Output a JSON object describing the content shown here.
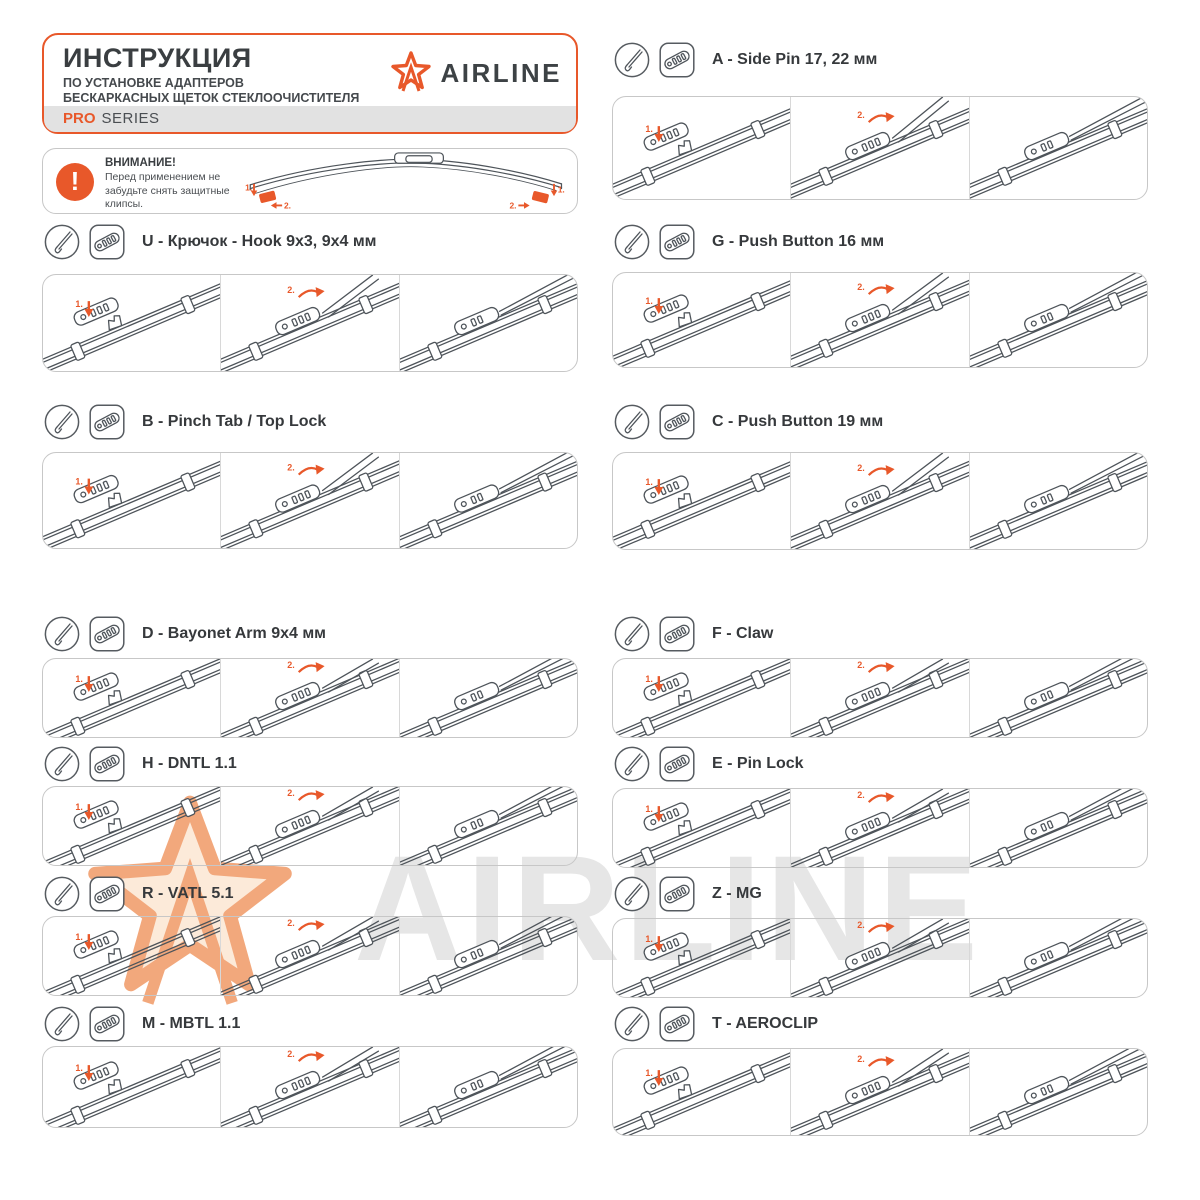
{
  "header": {
    "title": "ИНСТРУКЦИЯ",
    "subtitle_line1": "ПО УСТАНОВКЕ АДАПТЕРОВ",
    "subtitle_line2": "БЕСКАРКАСНЫХ ЩЕТОК СТЕКЛООЧИСТИТЕЛЯ",
    "series_highlight": "PRO",
    "series_rest": "SERIES",
    "brand": "AIRLINE"
  },
  "warning": {
    "title": "ВНИМАНИЕ!",
    "text": "Перед применением не забудьте снять защитные клипсы.",
    "icon_glyph": "!",
    "clip_labels": [
      "1.",
      "2."
    ]
  },
  "watermark": {
    "text": "AIRLINE"
  },
  "panels": {
    "step_labels": [
      "1.",
      "2."
    ]
  },
  "icons": {
    "arm_icon": "wiper-arm-end",
    "adapter_icon": "adapter-clip",
    "warning_icon": "exclamation-circle",
    "brand_icon": "airline-star"
  },
  "colors": {
    "accent": "#E8582A",
    "line": "#4E545A",
    "panel_border": "#C7C7C7",
    "watermark_gray": "#E6E6E6",
    "watermark_peach": "#FCEAD9"
  },
  "sections": {
    "left": [
      {
        "id": "U",
        "title": "U - Крючок - Hook 9x3, 9x4 мм"
      },
      {
        "id": "B",
        "title": "B - Pinch Tab / Top Lock"
      },
      {
        "id": "D",
        "title": "D - Bayonet Arm 9x4 мм"
      },
      {
        "id": "H",
        "title": "H - DNTL 1.1"
      },
      {
        "id": "R",
        "title": "R - VATL 5.1"
      },
      {
        "id": "M",
        "title": "M - MBTL 1.1"
      }
    ],
    "right": [
      {
        "id": "A",
        "title": "A - Side Pin 17, 22 мм"
      },
      {
        "id": "G",
        "title": "G - Push Button 16 мм"
      },
      {
        "id": "C",
        "title": "C - Push Button 19 мм"
      },
      {
        "id": "F",
        "title": "F - Claw"
      },
      {
        "id": "E",
        "title": "E - Pin Lock"
      },
      {
        "id": "Z",
        "title": "Z - MG"
      },
      {
        "id": "T",
        "title": "T - AEROCLIP"
      }
    ]
  }
}
